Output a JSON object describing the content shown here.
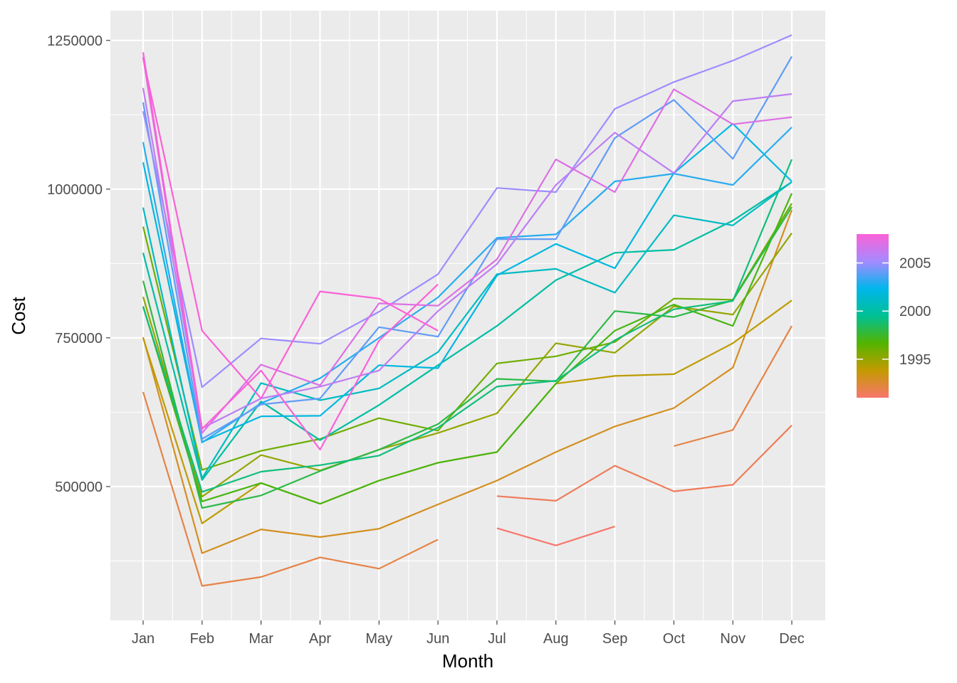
{
  "chart_data": {
    "type": "line",
    "title": "",
    "xlabel": "Month",
    "ylabel": "Cost",
    "categories": [
      "Jan",
      "Feb",
      "Mar",
      "Apr",
      "May",
      "Jun",
      "Jul",
      "Aug",
      "Sep",
      "Oct",
      "Nov",
      "Dec"
    ],
    "ylim": [
      275000,
      1300000
    ],
    "y_ticks": [
      500000,
      750000,
      1000000,
      1250000
    ],
    "y_tick_labels": [
      "500000",
      "750000",
      "1000000",
      "1250000"
    ],
    "grid": true,
    "legend": {
      "position": "right",
      "type": "colorbar",
      "range": [
        1991,
        2008
      ],
      "ticks": [
        1995,
        2000,
        2005
      ],
      "tick_labels": [
        "1995",
        "2000",
        "2005"
      ],
      "colors": [
        "#f8766d",
        "#c49a00",
        "#53b400",
        "#00c094",
        "#00b6eb",
        "#a58aff",
        "#fb61d7"
      ]
    },
    "series": [
      {
        "year": 1991,
        "values": [
          null,
          null,
          null,
          null,
          null,
          null,
          430000,
          401000,
          433000,
          null,
          null,
          null
        ]
      },
      {
        "year": 1991.5,
        "values": [
          null,
          null,
          null,
          null,
          null,
          null,
          484000,
          476000,
          535000,
          492000,
          503000,
          603000
        ]
      },
      {
        "year": 1992,
        "values": [
          659000,
          333000,
          348000,
          381000,
          362000,
          411000,
          null,
          null,
          null,
          568000,
          595000,
          770000
        ]
      },
      {
        "year": 1993,
        "values": [
          751000,
          388000,
          428000,
          415000,
          429000,
          470000,
          510000,
          558000,
          601000,
          632000,
          700000,
          965000
        ]
      },
      {
        "year": 1994,
        "values": [
          750000,
          438000,
          506000,
          471000,
          510000,
          540000,
          558000,
          673000,
          686000,
          689000,
          741000,
          813000
        ]
      },
      {
        "year": 1995,
        "values": [
          819000,
          483000,
          553000,
          527000,
          562000,
          590000,
          623000,
          741000,
          725000,
          803000,
          789000,
          926000
        ]
      },
      {
        "year": 1996,
        "values": [
          937000,
          528000,
          560000,
          580000,
          615000,
          594000,
          707000,
          719000,
          743000,
          816000,
          814000,
          976000
        ]
      },
      {
        "year": 1997,
        "values": [
          803000,
          475000,
          506000,
          471000,
          510000,
          540000,
          558000,
          673000,
          762000,
          806000,
          770000,
          993000
        ]
      },
      {
        "year": 1998,
        "values": [
          846000,
          464000,
          485000,
          526000,
          562000,
          605000,
          681000,
          677000,
          795000,
          785000,
          813000,
          970000
        ]
      },
      {
        "year": 1999,
        "values": [
          802000,
          491000,
          525000,
          536000,
          552000,
          599000,
          668000,
          678000,
          746000,
          798000,
          812000,
          1050000
        ]
      },
      {
        "year": 2000,
        "values": [
          893000,
          511000,
          643000,
          578000,
          637000,
          704000,
          770000,
          847000,
          893000,
          898000,
          947000,
          1012000
        ]
      },
      {
        "year": 2001,
        "values": [
          969000,
          514000,
          674000,
          645000,
          665000,
          726000,
          857000,
          866000,
          826000,
          956000,
          939000,
          1012000
        ]
      },
      {
        "year": 2002,
        "values": [
          1045000,
          575000,
          618000,
          619000,
          704000,
          699000,
          855000,
          908000,
          867000,
          1027000,
          1110000,
          1013000
        ]
      },
      {
        "year": 2003,
        "values": [
          1079000,
          574000,
          640000,
          682000,
          750000,
          818000,
          918000,
          924000,
          1013000,
          1026000,
          1007000,
          1104000
        ]
      },
      {
        "year": 2004,
        "values": [
          1146000,
          580000,
          638000,
          648000,
          768000,
          752000,
          916000,
          916000,
          1086000,
          1150000,
          1051000,
          1223000
        ]
      },
      {
        "year": 2005,
        "values": [
          1131000,
          667000,
          749000,
          740000,
          794000,
          857000,
          1002000,
          995000,
          1135000,
          1180000,
          1216000,
          1259000
        ]
      },
      {
        "year": 2006,
        "values": [
          1170000,
          598000,
          648000,
          668000,
          695000,
          795000,
          874000,
          1007000,
          1095000,
          1027000,
          1148000,
          1160000
        ]
      },
      {
        "year": 2007,
        "values": [
          1222000,
          590000,
          705000,
          670000,
          808000,
          804000,
          882000,
          1050000,
          995000,
          1168000,
          1109000,
          1121000
        ]
      },
      {
        "year": 2008,
        "values": [
          1230000,
          597000,
          695000,
          562000,
          745000,
          840000,
          null,
          null,
          null,
          null,
          null,
          null
        ]
      },
      {
        "year": 2008.5,
        "values": [
          1220000,
          762000,
          648000,
          828000,
          816000,
          762000,
          null,
          null,
          null,
          null,
          null,
          null
        ]
      }
    ]
  }
}
